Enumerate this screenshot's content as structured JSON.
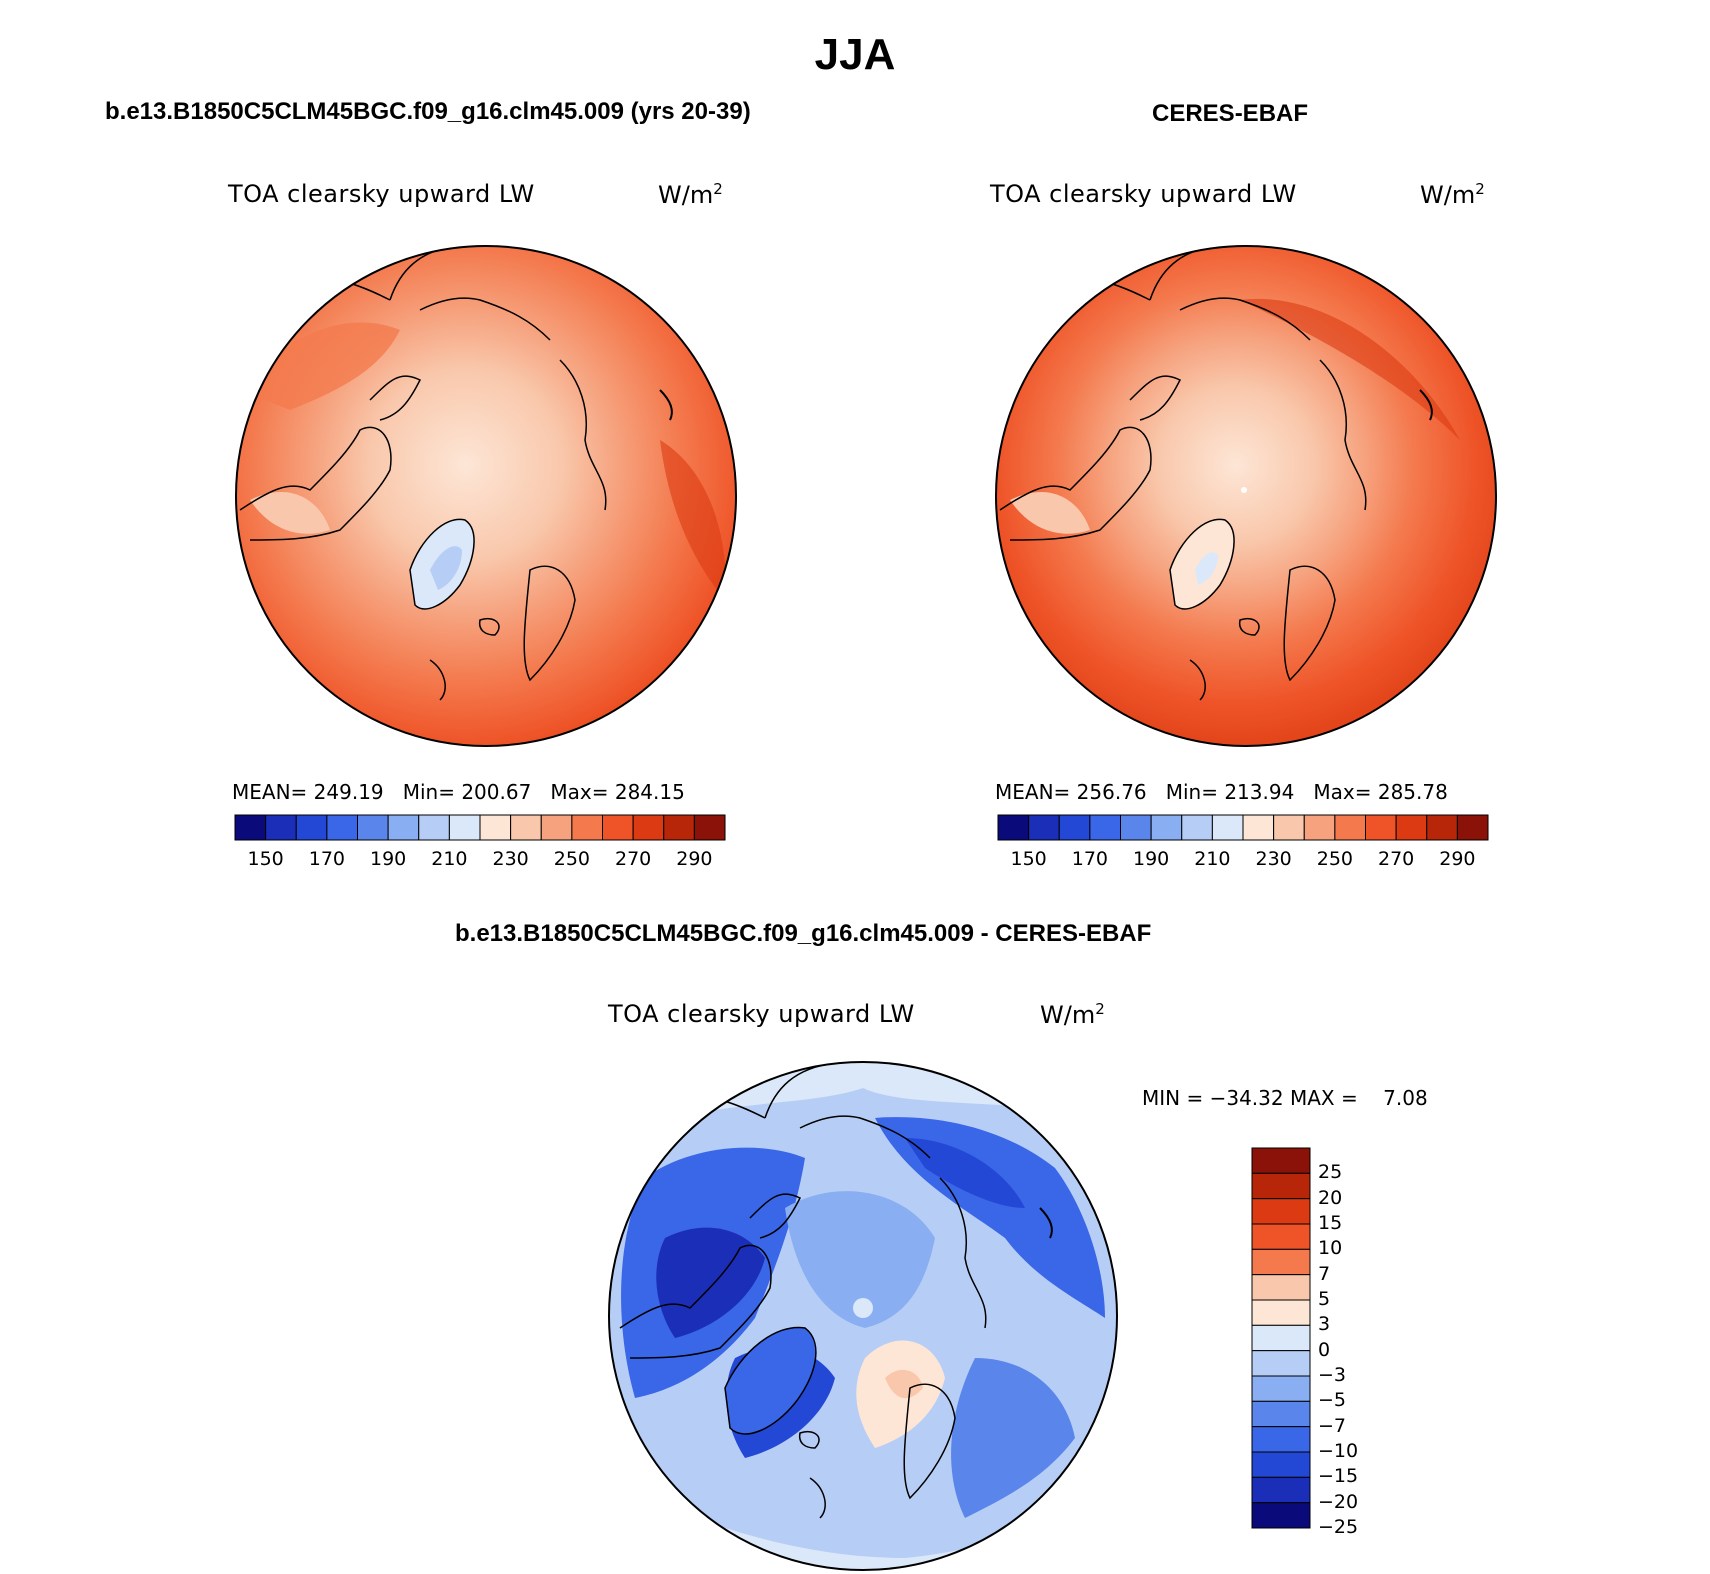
{
  "figure": {
    "season_title": "JJA"
  },
  "panels": [
    {
      "id": "model",
      "title": "b.e13.B1850C5CLM45BGC.f09_g16.clm45.009 (yrs 20-39)",
      "variable": "TOA clearsky upward LW",
      "units_base": "W/m",
      "units_exp": "2",
      "stats": {
        "mean_label": "MEAN=",
        "mean": "249.19",
        "min_label": "Min=",
        "min": "200.67",
        "max_label": "Max=",
        "max": "284.15"
      }
    },
    {
      "id": "obs",
      "title": "CERES-EBAF",
      "variable": "TOA clearsky upward LW",
      "units_base": "W/m",
      "units_exp": "2",
      "stats": {
        "mean_label": "MEAN=",
        "mean": "256.76",
        "min_label": "Min=",
        "min": "213.94",
        "max_label": "Max=",
        "max": "285.78"
      }
    },
    {
      "id": "diff",
      "title": "b.e13.B1850C5CLM45BGC.f09_g16.clm45.009 - CERES-EBAF",
      "variable": "TOA clearsky upward LW",
      "units_base": "W/m",
      "units_exp": "2",
      "stats_text": "MIN = −34.32 MAX =    7.08"
    }
  ],
  "colorbar_abs": {
    "colors": [
      "#0a0a7a",
      "#1a2eb8",
      "#2448d6",
      "#3a66e8",
      "#5a86ec",
      "#8aaef2",
      "#b6cef6",
      "#dbe8fa",
      "#fde6d6",
      "#f9c8ac",
      "#f6a27e",
      "#f47a4e",
      "#ee5428",
      "#dc3a12",
      "#b8260a",
      "#8a1208"
    ],
    "tick_labels": [
      "150",
      "170",
      "190",
      "210",
      "230",
      "250",
      "270",
      "290"
    ]
  },
  "colorbar_diff": {
    "colors": [
      "#8a1208",
      "#b8260a",
      "#dc3a12",
      "#ee5428",
      "#f47a4e",
      "#f9c8ac",
      "#fde6d6",
      "#dbe8fa",
      "#b6cef6",
      "#8aaef2",
      "#5a86ec",
      "#3a66e8",
      "#2448d6",
      "#1a2eb8",
      "#0a0a7a"
    ],
    "tick_labels": [
      "25",
      "20",
      "15",
      "10",
      "7",
      "5",
      "3",
      "0",
      "−3",
      "−5",
      "−7",
      "−10",
      "−15",
      "−20",
      "−25"
    ]
  }
}
